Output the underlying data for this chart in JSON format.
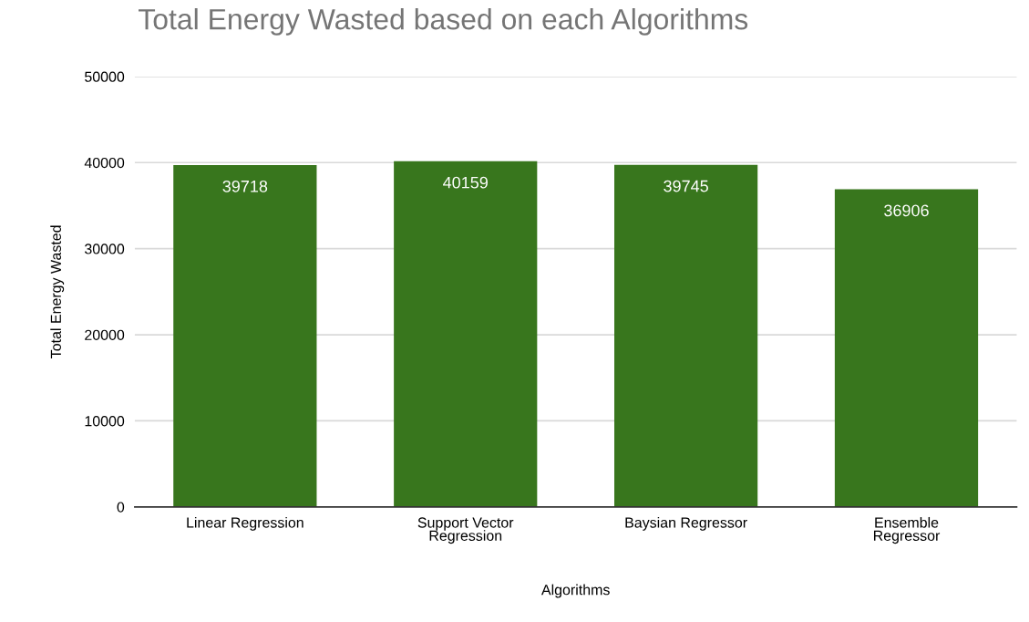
{
  "chart_data": {
    "type": "bar",
    "title": "Total Energy Wasted based on each Algorithms",
    "xlabel": "Algorithms",
    "ylabel": "Total Energy Wasted",
    "categories": [
      "Linear Regression",
      "Support Vector\nRegression",
      "Baysian Regressor",
      "Ensemble\nRegressor"
    ],
    "values": [
      39718,
      40159,
      39745,
      36906
    ],
    "color": "#38761d",
    "ylim": [
      0,
      50000
    ],
    "yticks": [
      0,
      10000,
      20000,
      30000,
      40000,
      50000
    ],
    "grid": "y",
    "data_labels": true
  }
}
